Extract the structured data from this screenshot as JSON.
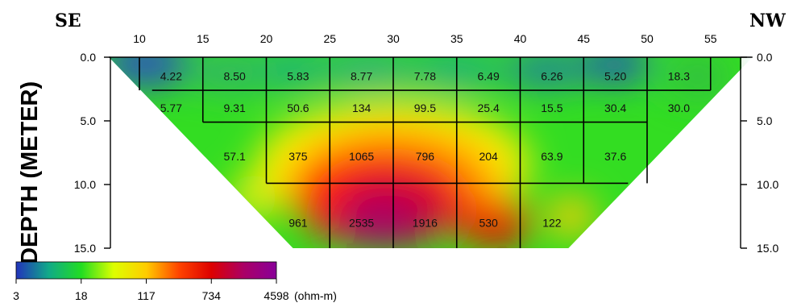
{
  "chart_data": {
    "type": "heatmap",
    "title": "",
    "corner_labels": {
      "left": "SE",
      "right": "NW"
    },
    "ylabel": "DEPTH (METER)",
    "xlabel": "",
    "x_ticks": [
      "10",
      "15",
      "20",
      "25",
      "30",
      "35",
      "40",
      "45",
      "50",
      "55"
    ],
    "y_ticks": [
      "0.0",
      "5.0",
      "10.0",
      "15.0"
    ],
    "xlim": [
      7,
      58
    ],
    "ylim": [
      0,
      15
    ],
    "layers": [
      {
        "x": [
          12.5,
          17.5,
          22.5,
          27.5,
          32.5,
          37.5,
          42.5,
          47.5,
          52.5
        ],
        "y": 1.5,
        "values": [
          "4.22",
          "8.50",
          "5.83",
          "8.77",
          "7.78",
          "6.49",
          "6.26",
          "5.20",
          "18.3"
        ]
      },
      {
        "x": [
          12.5,
          17.5,
          22.5,
          27.5,
          32.5,
          37.5,
          42.5,
          47.5,
          52.5
        ],
        "y": 4.0,
        "values": [
          "5.77",
          "9.31",
          "50.6",
          "134",
          "99.5",
          "25.4",
          "15.5",
          "30.4",
          "30.0"
        ]
      },
      {
        "x": [
          17.5,
          22.5,
          27.5,
          32.5,
          37.5,
          42.5,
          47.5
        ],
        "y": 7.8,
        "values": [
          "57.1",
          "375",
          "1065",
          "796",
          "204",
          "63.9",
          "37.6"
        ]
      },
      {
        "x": [
          22.5,
          27.5,
          32.5,
          37.5,
          42.5
        ],
        "y": 13.0,
        "values": [
          "961",
          "2535",
          "1916",
          "530",
          "122"
        ]
      }
    ],
    "colorbar": {
      "tick_labels": [
        "3",
        "18",
        "117",
        "734",
        "4598"
      ],
      "unit": "(ohm-m)",
      "colors": [
        "#2233bb",
        "#11aa88",
        "#22dd22",
        "#ddff00",
        "#ffcc00",
        "#ff4400",
        "#dd0000",
        "#aa0066",
        "#880099"
      ]
    }
  }
}
